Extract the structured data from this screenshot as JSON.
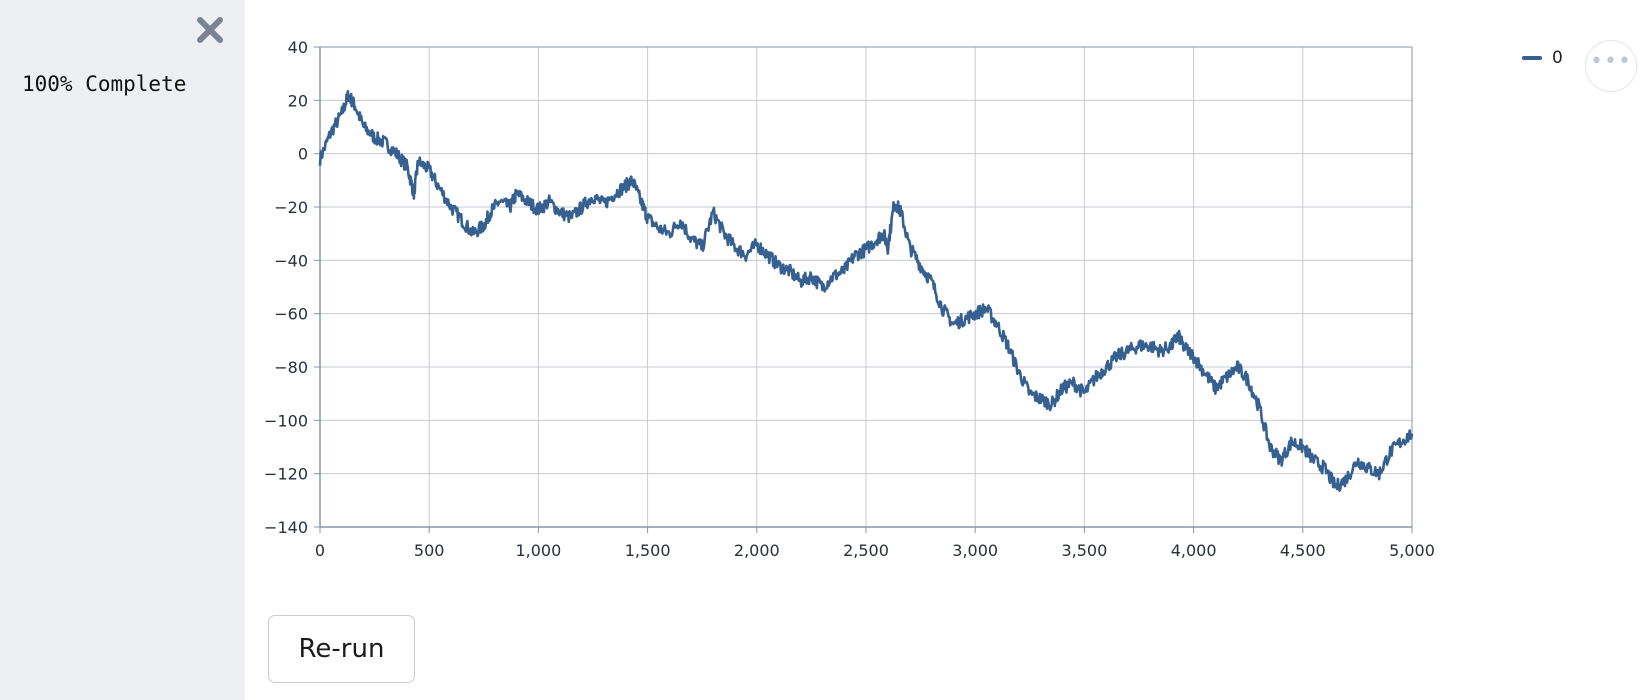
{
  "sidebar": {
    "progress_text": "100% Complete",
    "close_icon": "close-icon"
  },
  "toolbar": {
    "rerun_label": "Re-run",
    "more_icon": "more-horizontal-icon"
  },
  "legend": {
    "label": "0"
  },
  "colors": {
    "sidebar_bg": "#eeeff2",
    "series": "#35608f",
    "grid": "#c7cad1",
    "axis": "#8a93a8"
  },
  "chart_data": {
    "type": "line",
    "xlim": [
      0,
      5000
    ],
    "ylim": [
      -140,
      40
    ],
    "grid": true,
    "legend_placement": "top-right",
    "x_ticks": [
      "0",
      "500",
      "1,000",
      "1,500",
      "2,000",
      "2,500",
      "3,000",
      "3,500",
      "4,000",
      "4,500",
      "5,000"
    ],
    "y_ticks": [
      "40",
      "20",
      "0",
      "−20",
      "−40",
      "−60",
      "−80",
      "−100",
      "−120",
      "−140"
    ],
    "series": [
      {
        "name": "0",
        "x": [
          0,
          50,
          100,
          130,
          160,
          200,
          250,
          300,
          350,
          400,
          430,
          450,
          500,
          540,
          600,
          650,
          700,
          750,
          780,
          820,
          870,
          900,
          950,
          1000,
          1050,
          1100,
          1150,
          1200,
          1250,
          1300,
          1350,
          1400,
          1430,
          1470,
          1500,
          1550,
          1600,
          1650,
          1700,
          1750,
          1800,
          1850,
          1900,
          1950,
          2000,
          2050,
          2100,
          2150,
          2200,
          2250,
          2300,
          2350,
          2400,
          2450,
          2500,
          2550,
          2580,
          2600,
          2630,
          2660,
          2700,
          2750,
          2800,
          2850,
          2900,
          2950,
          3000,
          3050,
          3100,
          3150,
          3200,
          3250,
          3300,
          3350,
          3400,
          3450,
          3500,
          3550,
          3600,
          3650,
          3700,
          3750,
          3800,
          3850,
          3900,
          3930,
          3950,
          4000,
          4050,
          4100,
          4150,
          4200,
          4250,
          4300,
          4350,
          4400,
          4450,
          4500,
          4550,
          4600,
          4650,
          4700,
          4750,
          4800,
          4850,
          4900,
          4950,
          5000
        ],
        "y": [
          -2,
          8,
          15,
          22,
          18,
          10,
          6,
          4,
          0,
          -5,
          -15,
          -3,
          -6,
          -12,
          -20,
          -25,
          -30,
          -27,
          -22,
          -18,
          -20,
          -15,
          -18,
          -21,
          -18,
          -22,
          -24,
          -20,
          -16,
          -19,
          -15,
          -12,
          -10,
          -18,
          -24,
          -28,
          -30,
          -25,
          -32,
          -35,
          -22,
          -30,
          -35,
          -38,
          -34,
          -38,
          -42,
          -44,
          -48,
          -46,
          -50,
          -46,
          -44,
          -38,
          -36,
          -32,
          -30,
          -35,
          -18,
          -22,
          -35,
          -42,
          -48,
          -58,
          -64,
          -62,
          -60,
          -58,
          -64,
          -72,
          -82,
          -90,
          -92,
          -94,
          -88,
          -86,
          -90,
          -84,
          -80,
          -76,
          -74,
          -72,
          -72,
          -74,
          -72,
          -68,
          -72,
          -76,
          -82,
          -88,
          -84,
          -80,
          -85,
          -95,
          -110,
          -115,
          -108,
          -110,
          -115,
          -118,
          -125,
          -122,
          -115,
          -118,
          -120,
          -112,
          -108,
          -105
        ]
      }
    ]
  }
}
